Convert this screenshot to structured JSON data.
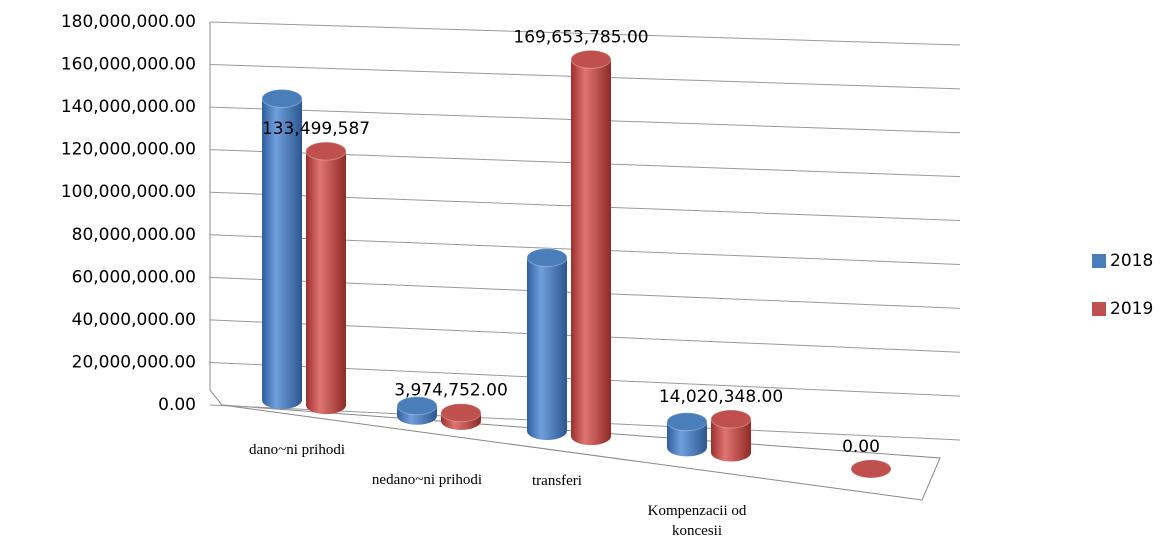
{
  "chart_data": {
    "type": "bar",
    "categories": [
      "dano~ni prihodi",
      "nedano~ni prihodi",
      "transferi",
      "Kompenzacii od koncesii",
      null
    ],
    "series": [
      {
        "name": "2018",
        "color": "#4a7ebb",
        "values": [
          163000000,
          5000000,
          80000000,
          11000000,
          null
        ]
      },
      {
        "name": "2019",
        "color": "#c0504d",
        "values": [
          133499587,
          3974752,
          169653785,
          14020348,
          0
        ],
        "value_labels": [
          "133,499,587",
          "3,974,752.00",
          "169,653,785.00",
          "14,020,348.00",
          "0.00"
        ]
      }
    ],
    "ylim": [
      0,
      180000000
    ],
    "yticks": [
      {
        "value": 0,
        "label": "0.00"
      },
      {
        "value": 20000000,
        "label": "20,000,000.00"
      },
      {
        "value": 40000000,
        "label": "40,000,000.00"
      },
      {
        "value": 60000000,
        "label": "60,000,000.00"
      },
      {
        "value": 80000000,
        "label": "80,000,000.00"
      },
      {
        "value": 100000000,
        "label": "100,000,000.00"
      },
      {
        "value": 120000000,
        "label": "120,000,000.00"
      },
      {
        "value": 140000000,
        "label": "140,000,000.00"
      },
      {
        "value": 160000000,
        "label": "160,000,000.00"
      },
      {
        "value": 180000000,
        "label": "180,000,000.00"
      }
    ],
    "grid": true,
    "legend": "right"
  }
}
